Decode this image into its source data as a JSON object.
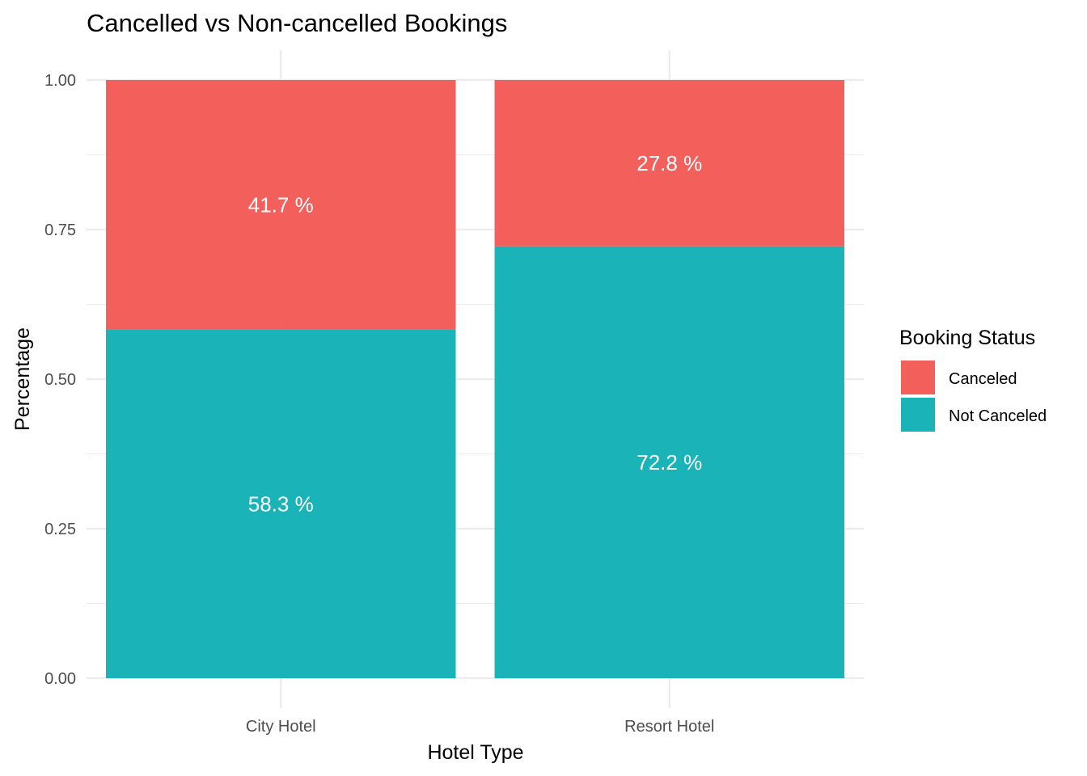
{
  "chart_data": {
    "type": "bar",
    "stacked": true,
    "title": "Cancelled vs Non-cancelled Bookings",
    "xlabel": "Hotel Type",
    "ylabel": "Percentage",
    "ylim": [
      0,
      1
    ],
    "yticks": [
      "0.00",
      "0.25",
      "0.50",
      "0.75",
      "1.00"
    ],
    "categories": [
      "City Hotel",
      "Resort Hotel"
    ],
    "series": [
      {
        "name": "Not Canceled",
        "values": [
          0.583,
          0.722
        ],
        "labels": [
          "58.3 %",
          "72.2 %"
        ],
        "color": "#19B3B8"
      },
      {
        "name": "Canceled",
        "values": [
          0.417,
          0.278
        ],
        "labels": [
          "41.7 %",
          "27.8 %"
        ],
        "color": "#F3605C"
      }
    ],
    "legend": {
      "title": "Booking Status",
      "position": "right",
      "items": [
        {
          "label": "Canceled",
          "color": "#F3605C"
        },
        {
          "label": "Not Canceled",
          "color": "#19B3B8"
        }
      ]
    },
    "grid": true
  }
}
